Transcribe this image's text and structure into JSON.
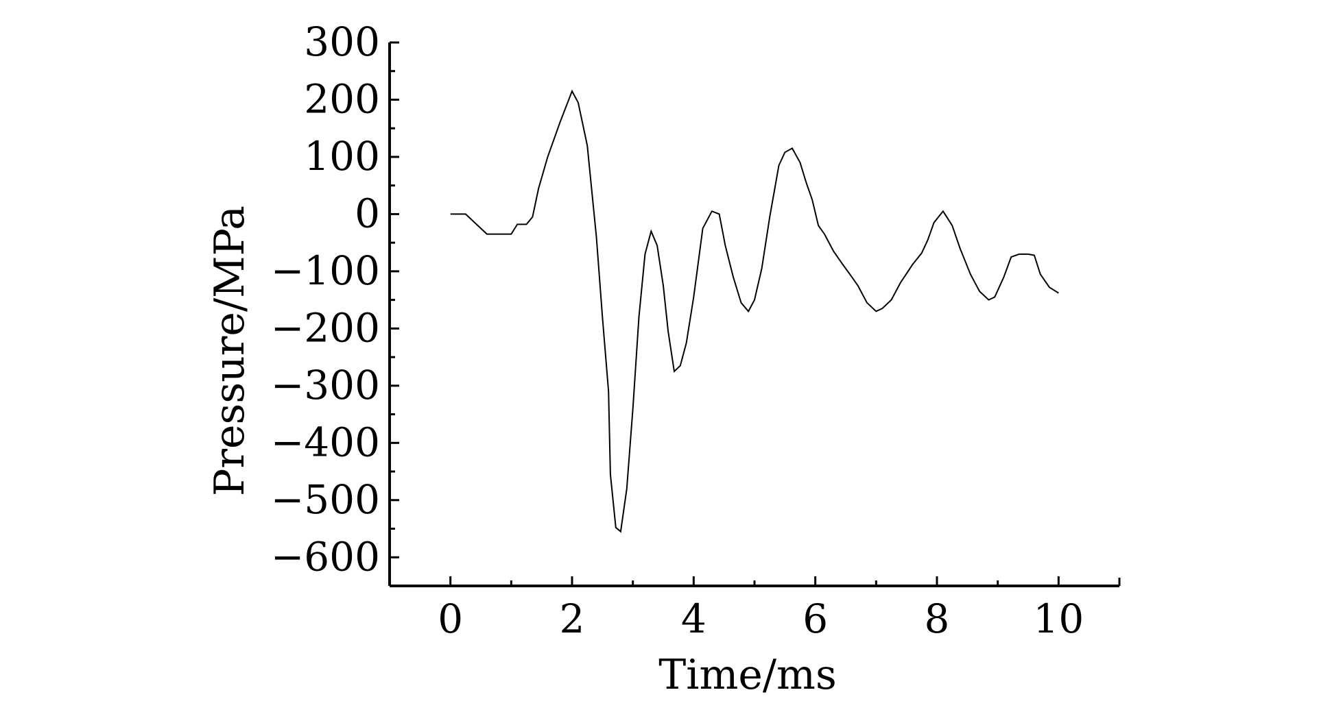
{
  "chart_data": {
    "type": "line",
    "title": "",
    "xlabel": "Time/ms",
    "ylabel": "Pressure/MPa",
    "xlim": [
      -1,
      11
    ],
    "ylim": [
      -650,
      300
    ],
    "grid": false,
    "legend": "none",
    "x_ticks": [
      0,
      2,
      4,
      6,
      8,
      10
    ],
    "x_tick_labels": [
      "0",
      "2",
      "4",
      "6",
      "8",
      "10"
    ],
    "y_ticks": [
      300,
      200,
      100,
      0,
      -100,
      -200,
      -300,
      -400,
      -500,
      -600
    ],
    "y_tick_labels": [
      "300",
      "200",
      "100",
      "0",
      "−100",
      "−200",
      "−300",
      "−400",
      "−500",
      "−600"
    ],
    "series": [
      {
        "color": "#000000",
        "x": [
          0,
          0.25,
          0.45,
          0.6,
          0.8,
          1.0,
          1.1,
          1.25,
          1.35,
          1.45,
          1.6,
          1.8,
          2.0,
          2.1,
          2.25,
          2.4,
          2.5,
          2.6,
          2.63,
          2.72,
          2.8,
          2.9,
          3.0,
          3.1,
          3.2,
          3.3,
          3.4,
          3.5,
          3.58,
          3.68,
          3.78,
          3.88,
          4.0,
          4.15,
          4.3,
          4.42,
          4.52,
          4.65,
          4.78,
          4.9,
          5.0,
          5.12,
          5.25,
          5.4,
          5.5,
          5.62,
          5.75,
          5.85,
          5.95,
          6.05,
          6.15,
          6.3,
          6.45,
          6.6,
          6.7,
          6.85,
          7.0,
          7.1,
          7.25,
          7.4,
          7.6,
          7.75,
          7.85,
          7.95,
          8.1,
          8.25,
          8.38,
          8.55,
          8.7,
          8.85,
          8.95,
          9.1,
          9.22,
          9.35,
          9.5,
          9.6,
          9.7,
          9.85,
          10.0
        ],
        "values": [
          0,
          0,
          -20,
          -35,
          -35,
          -35,
          -18,
          -18,
          -5,
          45,
          100,
          160,
          215,
          195,
          120,
          -40,
          -180,
          -310,
          -455,
          -548,
          -555,
          -480,
          -340,
          -180,
          -70,
          -30,
          -55,
          -125,
          -205,
          -275,
          -265,
          -225,
          -145,
          -25,
          5,
          0,
          -55,
          -110,
          -155,
          -170,
          -150,
          -95,
          -5,
          85,
          108,
          115,
          90,
          55,
          25,
          -20,
          -35,
          -65,
          -88,
          -110,
          -125,
          -155,
          -170,
          -165,
          -150,
          -120,
          -88,
          -68,
          -45,
          -15,
          5,
          -20,
          -60,
          -105,
          -135,
          -150,
          -145,
          -110,
          -75,
          -70,
          -70,
          -72,
          -105,
          -128,
          -138
        ]
      }
    ]
  }
}
